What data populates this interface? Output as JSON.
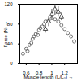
{
  "chart_data": {
    "type": "scatter",
    "xlabel": "Muscle length (L/L₀)",
    "ylabel": "Force (N)",
    "xlim": [
      0.5,
      1.4
    ],
    "xticks": [
      0.6,
      0.8,
      1,
      1.2
    ],
    "ylim": [
      0,
      120
    ],
    "yticks": [
      0,
      40,
      80,
      120
    ],
    "grid": false,
    "series": [
      {
        "marker": "circle",
        "color": "#555555",
        "x": [
          0.55,
          0.6,
          0.62,
          0.65,
          0.68,
          0.7,
          0.72,
          0.75,
          0.78,
          0.8,
          0.82,
          0.85,
          0.88,
          0.9,
          0.95,
          1.0,
          1.05,
          1.1,
          1.15,
          1.2,
          1.25,
          1.3,
          1.35
        ],
        "values": [
          20,
          30,
          25,
          38,
          42,
          50,
          55,
          60,
          58,
          68,
          72,
          75,
          80,
          85,
          88,
          92,
          90,
          85,
          78,
          70,
          62,
          55,
          45
        ]
      },
      {
        "marker": "triangle",
        "color": "#222222",
        "x": [
          0.9,
          0.95,
          1.0,
          1.05,
          1.1,
          1.15
        ],
        "values": [
          70,
          85,
          100,
          110,
          105,
          95
        ],
        "error": [
          8,
          10,
          10,
          12,
          10,
          8
        ]
      }
    ]
  }
}
